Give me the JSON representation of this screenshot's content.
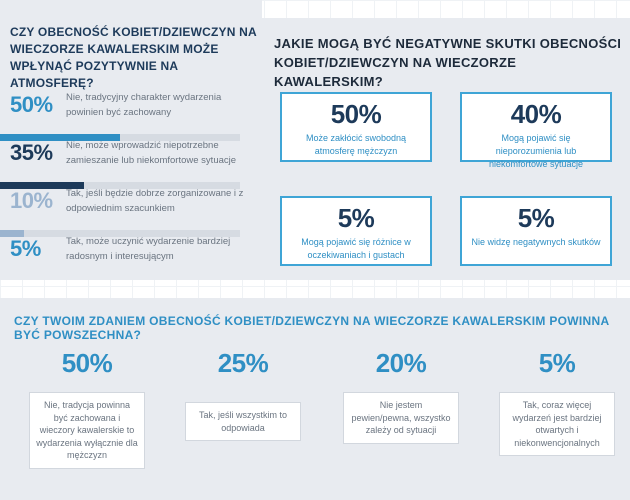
{
  "colors": {
    "navy": "#1d3a5a",
    "accent_blue": "#2f8fc4",
    "light_blue": "#9bb4cf",
    "panel_bg": "#e8ebf0",
    "text_gray": "#6a7480"
  },
  "panel1": {
    "title": "CZY OBECNOŚĆ KOBIET/DZIEWCZYN NA WIECZORZE KAWALERSKIM MOŻE WPŁYNĄĆ POZYTYWNIE NA ATMOSFERĘ?",
    "items": [
      {
        "pct": "50%",
        "value": 50,
        "text": "Nie, tradycyjny charakter wydarzenia powinien być zachowany"
      },
      {
        "pct": "35%",
        "value": 35,
        "text": "Nie, może wprowadzić niepotrzebne zamieszanie lub niekomfortowe sytuacje"
      },
      {
        "pct": "10%",
        "value": 10,
        "text": "Tak, jeśli będzie dobrze zorganizowane i z odpowiednim szacunkiem"
      },
      {
        "pct": "5%",
        "value": 5,
        "text": "Tak, może uczynić wydarzenie bardziej radosnym i interesującym"
      }
    ]
  },
  "panel2": {
    "title": "JAKIE MOGĄ BYĆ NEGATYWNE SKUTKI OBECNOŚCI KOBIET/DZIEWCZYN NA WIECZORZE KAWALERSKIM?",
    "cards": [
      {
        "pct": "50%",
        "text": "Może zakłócić swobodną atmosferę mężczyzn"
      },
      {
        "pct": "40%",
        "text": "Mogą pojawić się nieporozumienia lub niekomfortowe sytuacje"
      },
      {
        "pct": "5%",
        "text": "Mogą pojawić się różnice w oczekiwaniach i gustach"
      },
      {
        "pct": "5%",
        "text": "Nie widzę negatywnych skutków"
      }
    ]
  },
  "panel3": {
    "title": "CZY TWOIM ZDANIEM OBECNOŚĆ KOBIET/DZIEWCZYN NA WIECZORZE KAWALERSKIM POWINNA BYĆ POWSZECHNA?",
    "items": [
      {
        "pct": "50%",
        "text": "Nie, tradycja powinna być zachowana i wieczory kawalerskie to wydarzenia wyłącznie dla mężczyzn"
      },
      {
        "pct": "25%",
        "text": "Tak, jeśli wszystkim to odpowiada"
      },
      {
        "pct": "20%",
        "text": "Nie jestem pewien/pewna, wszystko zależy od sytuacji"
      },
      {
        "pct": "5%",
        "text": "Tak, coraz więcej wydarzeń jest bardziej otwartych i niekonwencjonalnych"
      }
    ]
  }
}
